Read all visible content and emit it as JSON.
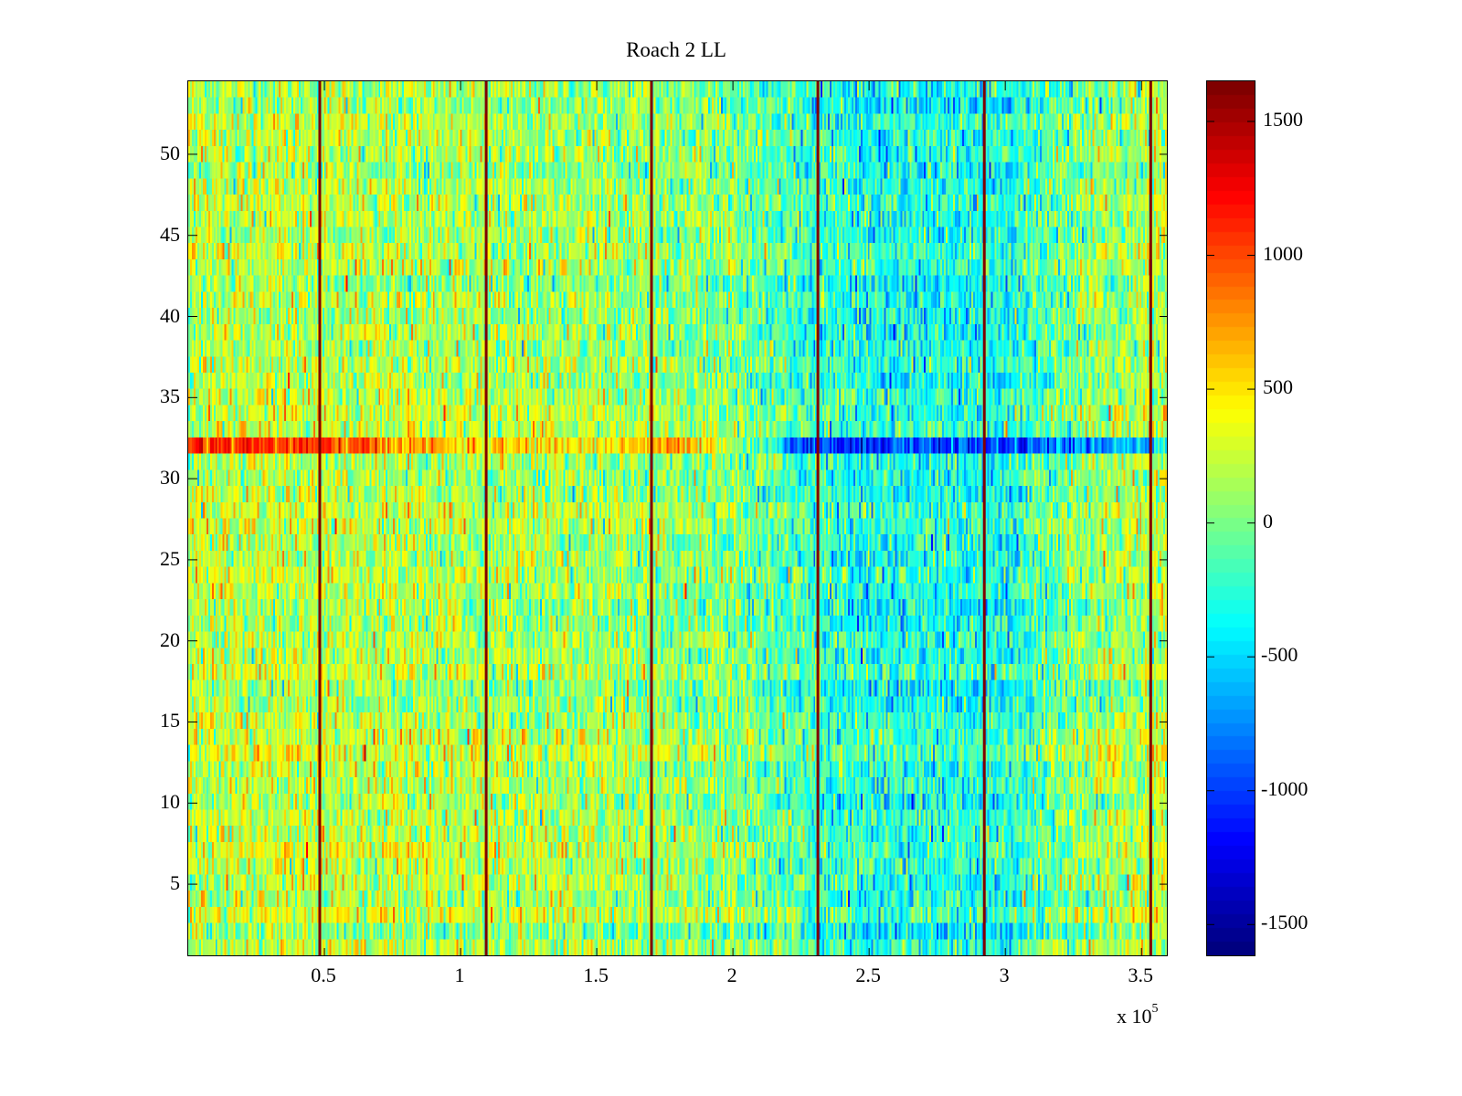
{
  "chart_data": {
    "type": "heatmap",
    "title": "Roach 2 LL",
    "xlabel": "",
    "ylabel": "",
    "x_multiplier_label": "x 10",
    "x_multiplier_exponent": "5",
    "xlim": [
      0,
      360000
    ],
    "ylim": [
      0.5,
      54.5
    ],
    "rows": 54,
    "columns": 540,
    "x_ticks": [
      50000,
      100000,
      150000,
      200000,
      250000,
      300000,
      350000
    ],
    "x_tick_labels": [
      "0.5",
      "1",
      "1.5",
      "2",
      "2.5",
      "3",
      "3.5"
    ],
    "y_ticks": [
      5,
      10,
      15,
      20,
      25,
      30,
      35,
      40,
      45,
      50
    ],
    "y_tick_labels": [
      "5",
      "10",
      "15",
      "20",
      "25",
      "30",
      "35",
      "40",
      "45",
      "50"
    ],
    "colormap": "jet",
    "clim": [
      -1615,
      1650
    ],
    "colorbar": {
      "ticks": [
        -1500,
        -1000,
        -500,
        0,
        500,
        1000,
        1500
      ],
      "tick_labels": [
        "-1500",
        "-1000",
        "-500",
        "0",
        "500",
        "1000",
        "1500"
      ],
      "placement": "right"
    },
    "background_trend": {
      "x": [
        0,
        50000,
        100000,
        150000,
        200000,
        220000,
        250000,
        300000,
        330000,
        360000
      ],
      "mean": [
        200,
        180,
        150,
        100,
        0,
        -150,
        -330,
        -330,
        50,
        200
      ],
      "noise_std": 260
    },
    "highlight_row": {
      "row": 32,
      "x": [
        0,
        50000,
        100000,
        150000,
        180000,
        210000,
        230000,
        280000,
        300000,
        355000,
        360000
      ],
      "mean": [
        1150,
        1000,
        550,
        450,
        700,
        -200,
        -1050,
        -950,
        -1000,
        -600,
        -400
      ]
    },
    "vertical_lines": {
      "x": [
        48300,
        109400,
        170100,
        231200,
        292300,
        353400
      ],
      "value": 1650,
      "color": "#800000"
    }
  }
}
